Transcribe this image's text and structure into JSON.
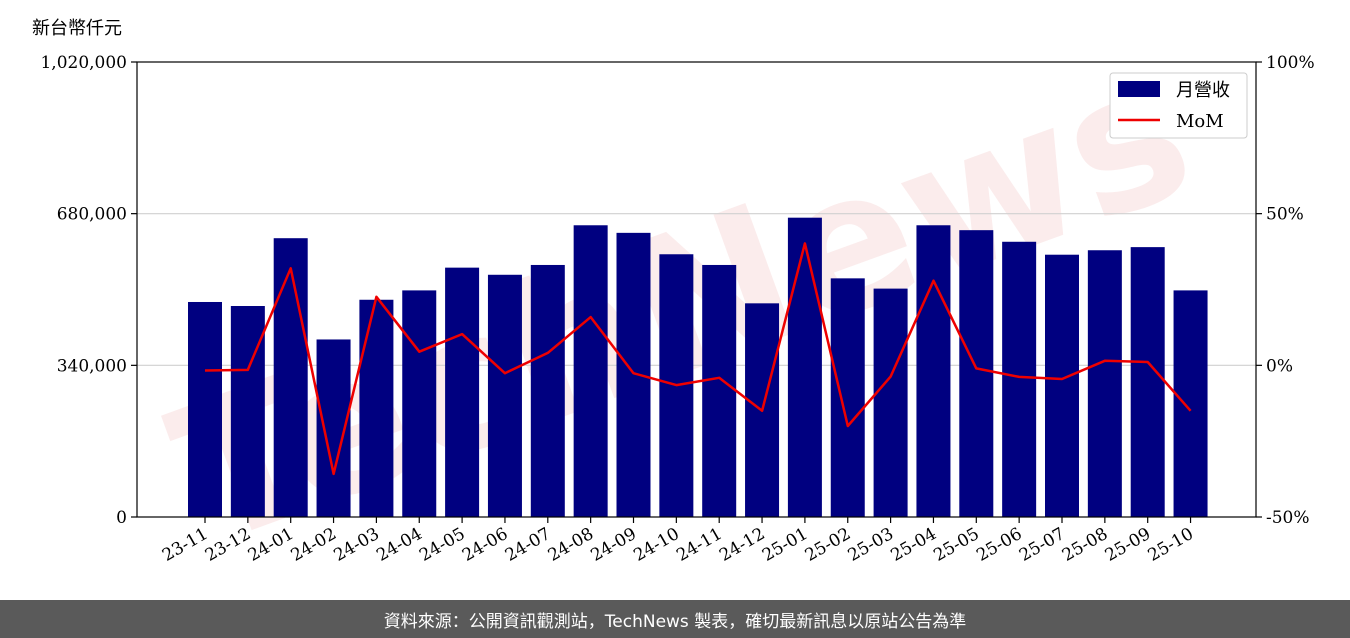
{
  "watermark": "TechNews",
  "footer": {
    "text": "資料來源：公開資訊觀測站，TechNews 製表，確切最新訊息以原站公告為準"
  },
  "chart_data": {
    "type": "bar",
    "ylabel": "新台幣仟元",
    "categories": [
      "23-11",
      "23-12",
      "24-01",
      "24-02",
      "24-03",
      "24-04",
      "24-05",
      "24-06",
      "24-07",
      "24-08",
      "24-09",
      "24-10",
      "24-11",
      "24-12",
      "25-01",
      "25-02",
      "25-03",
      "25-04",
      "25-05",
      "25-06",
      "25-07",
      "25-08",
      "25-09",
      "25-10"
    ],
    "ylim": [
      0,
      1020000
    ],
    "yticks": [
      0,
      340000,
      680000,
      1020000
    ],
    "ytick_labels": [
      "0",
      "340,000",
      "680,000",
      "1,020,000"
    ],
    "y2lim": [
      -50,
      100
    ],
    "y2ticks": [
      -50,
      0,
      50,
      100
    ],
    "y2tick_labels": [
      "-50%",
      "0%",
      "50%",
      "100%"
    ],
    "grid": "horizontal",
    "legend_position": "top-right",
    "series": [
      {
        "name": "月營收",
        "type": "bar",
        "axis": "left",
        "color": "#000080",
        "values": [
          482000,
          473000,
          625000,
          398000,
          487000,
          508000,
          559000,
          543000,
          565000,
          654000,
          637000,
          589000,
          565000,
          479000,
          671000,
          535000,
          512000,
          654000,
          643000,
          617000,
          588000,
          598000,
          605000,
          508000
        ]
      },
      {
        "name": "MoM",
        "type": "line",
        "axis": "right",
        "color": "#ee0000",
        "values": [
          -1.7,
          -1.5,
          32.0,
          -35.8,
          22.6,
          4.5,
          10.3,
          -2.6,
          4.1,
          15.9,
          -2.6,
          -6.5,
          -4.1,
          -15.0,
          40.2,
          -20.0,
          -3.7,
          27.9,
          -1.0,
          -3.8,
          -4.5,
          1.5,
          1.1,
          -15.0
        ]
      }
    ]
  }
}
